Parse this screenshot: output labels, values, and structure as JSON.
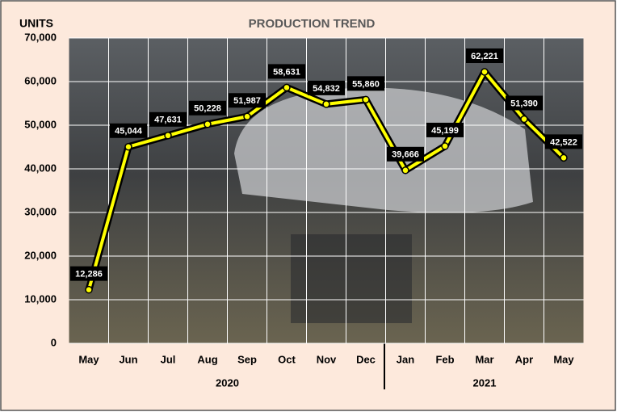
{
  "chart_data": {
    "type": "line",
    "title": "PRODUCTION TREND",
    "y_label": "UNITS",
    "categories": [
      "May",
      "Jun",
      "Jul",
      "Aug",
      "Sep",
      "Oct",
      "Nov",
      "Dec",
      "Jan",
      "Feb",
      "Mar",
      "Apr",
      "May"
    ],
    "year_labels": [
      "2020",
      "2021"
    ],
    "values": [
      12286,
      45044,
      47631,
      50228,
      51987,
      58631,
      54832,
      55860,
      39666,
      45199,
      62221,
      51390,
      42522
    ],
    "value_labels": [
      "12,286",
      "45,044",
      "47,631",
      "50,228",
      "51,987",
      "58,631",
      "54,832",
      "55,860",
      "39,666",
      "45,199",
      "62,221",
      "51,390",
      "42,522"
    ],
    "color": "#ffff00",
    "ylim": [
      0,
      70000
    ],
    "yticks": [
      0,
      {
        "value": 10000,
        "label": "10,000"
      },
      {
        "value": 20000,
        "label": "20,000"
      },
      {
        "value": 30000,
        "label": "30,000"
      },
      {
        "value": 40000,
        "label": "40,000"
      },
      {
        "value": 50000,
        "label": "50,000"
      },
      {
        "value": 60000,
        "label": "60,000"
      },
      {
        "value": 70000,
        "label": "70,000"
      }
    ],
    "grid": true
  }
}
